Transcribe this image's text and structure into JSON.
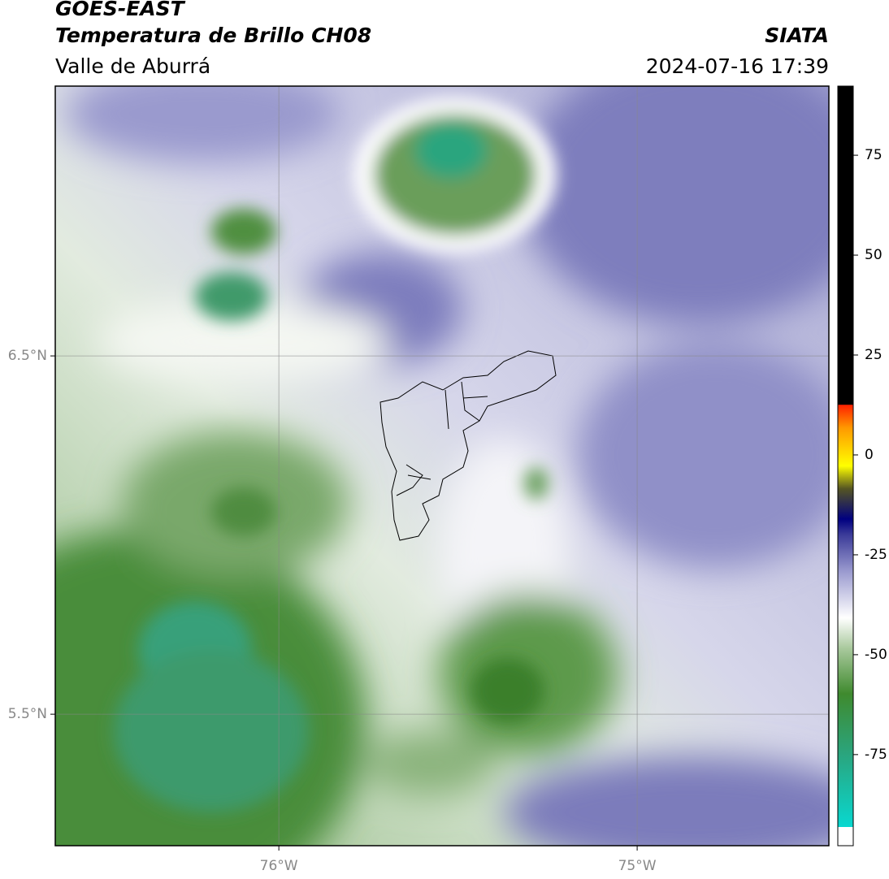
{
  "header": {
    "title": "GOES-EAST",
    "subtitle": "Temperatura de Brillo CH08",
    "region": "Valle de Aburrá",
    "source": "SIATA",
    "datetime": "2024-07-16 17:39"
  },
  "map": {
    "lon_range": [
      -76.624,
      -74.465
    ],
    "lat_range": [
      5.133,
      7.253
    ],
    "lon_ticks": [
      {
        "value": -76,
        "label": "76°W"
      },
      {
        "value": -75,
        "label": "75°W"
      }
    ],
    "lat_ticks": [
      {
        "value": 6.5,
        "label": "6.5°N"
      },
      {
        "value": 5.5,
        "label": "5.5°N"
      }
    ]
  },
  "colorbar": {
    "range": [
      -97.8,
      92.3
    ],
    "ticks": [
      75,
      50,
      25,
      0,
      -25,
      -50,
      -75
    ]
  }
}
